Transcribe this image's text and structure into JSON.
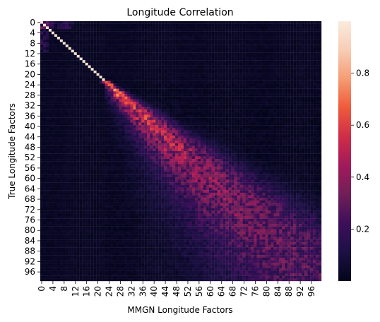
{
  "chart_data": {
    "type": "heatmap",
    "title": "Longitude Correlation",
    "xlabel": "MMGN Longitude Factors",
    "ylabel": "True Longitude Factors",
    "rows": 100,
    "cols": 100,
    "x_ticks": [
      0,
      4,
      8,
      12,
      16,
      20,
      24,
      28,
      32,
      36,
      40,
      44,
      48,
      52,
      56,
      60,
      64,
      68,
      72,
      76,
      80,
      84,
      88,
      92,
      96
    ],
    "y_ticks": [
      0,
      4,
      8,
      12,
      16,
      20,
      24,
      28,
      32,
      36,
      40,
      44,
      48,
      52,
      56,
      60,
      64,
      68,
      72,
      76,
      80,
      84,
      88,
      92,
      96
    ],
    "colorbar": {
      "range": [
        0,
        1
      ],
      "ticks": [
        0.2,
        0.4,
        0.6,
        0.8
      ],
      "tick_labels": [
        "0.2",
        "0.4",
        "0.6",
        "0.8"
      ],
      "colormap": "rocket"
    },
    "approx_pattern": {
      "diagonal": "near 1.0 for indices 0-22, decreasing to ~0.5-0.7 around 24-50, ~0.3 beyond 55",
      "spread": "off-diagonal band widens with index; weak values near 0 elsewhere",
      "note": "individual cell values estimated visually"
    }
  },
  "colors": {
    "cmap_stops": [
      "#03051a",
      "#1c1044",
      "#3d0f5b",
      "#701f57",
      "#a11a5b",
      "#cf2d48",
      "#ef5a3b",
      "#f69c73",
      "#f7cdb5",
      "#faebdd"
    ]
  }
}
